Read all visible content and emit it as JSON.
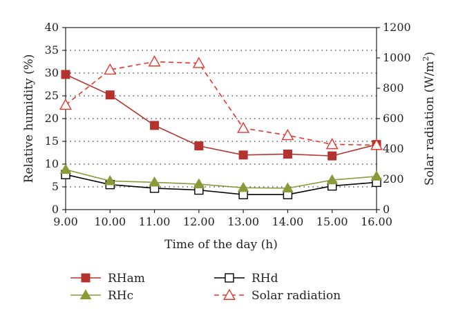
{
  "chart_data": {
    "type": "line",
    "x": [
      "9.00",
      "10.00",
      "11.00",
      "12.00",
      "13.00",
      "14.00",
      "15.00",
      "16.00"
    ],
    "xlabel": "Time of the day (h)",
    "ylabel_left": "Relative humidity (%)",
    "ylabel_right_main": "Solar radiation (W/m",
    "ylabel_right_sup": "2",
    "ylabel_right_close": ")",
    "ylim_left": [
      0,
      40
    ],
    "yticks_left": [
      "0",
      "5",
      "10",
      "15",
      "20",
      "25",
      "30",
      "35",
      "40"
    ],
    "ylim_right": [
      0,
      1200
    ],
    "yticks_right": [
      "0",
      "200",
      "400",
      "600",
      "800",
      "1000",
      "1200"
    ],
    "grid": "horizontal dotted",
    "legend_placement": "bottom",
    "series": [
      {
        "name": "RHam",
        "axis": "left",
        "color": "#b5332e",
        "marker": "filled-square",
        "dash": "solid",
        "values": [
          29.7,
          25.2,
          18.5,
          14.0,
          12.0,
          12.2,
          11.8,
          14.3
        ]
      },
      {
        "name": "RHd",
        "axis": "left",
        "color": "#000000",
        "marker": "open-square",
        "dash": "solid",
        "values": [
          7.7,
          5.5,
          4.7,
          4.3,
          3.3,
          3.3,
          5.2,
          6.0
        ]
      },
      {
        "name": "RHc",
        "axis": "left",
        "color": "#8a9a3a",
        "marker": "filled-triangle",
        "dash": "solid",
        "values": [
          8.8,
          6.3,
          6.0,
          5.6,
          4.8,
          4.7,
          6.5,
          7.3
        ]
      },
      {
        "name": "Solar radiation",
        "axis": "right",
        "color": "#e8342a",
        "marker": "open-triangle",
        "dash": "dashed",
        "values": [
          690,
          922,
          975,
          965,
          537,
          490,
          430,
          425
        ]
      }
    ]
  }
}
